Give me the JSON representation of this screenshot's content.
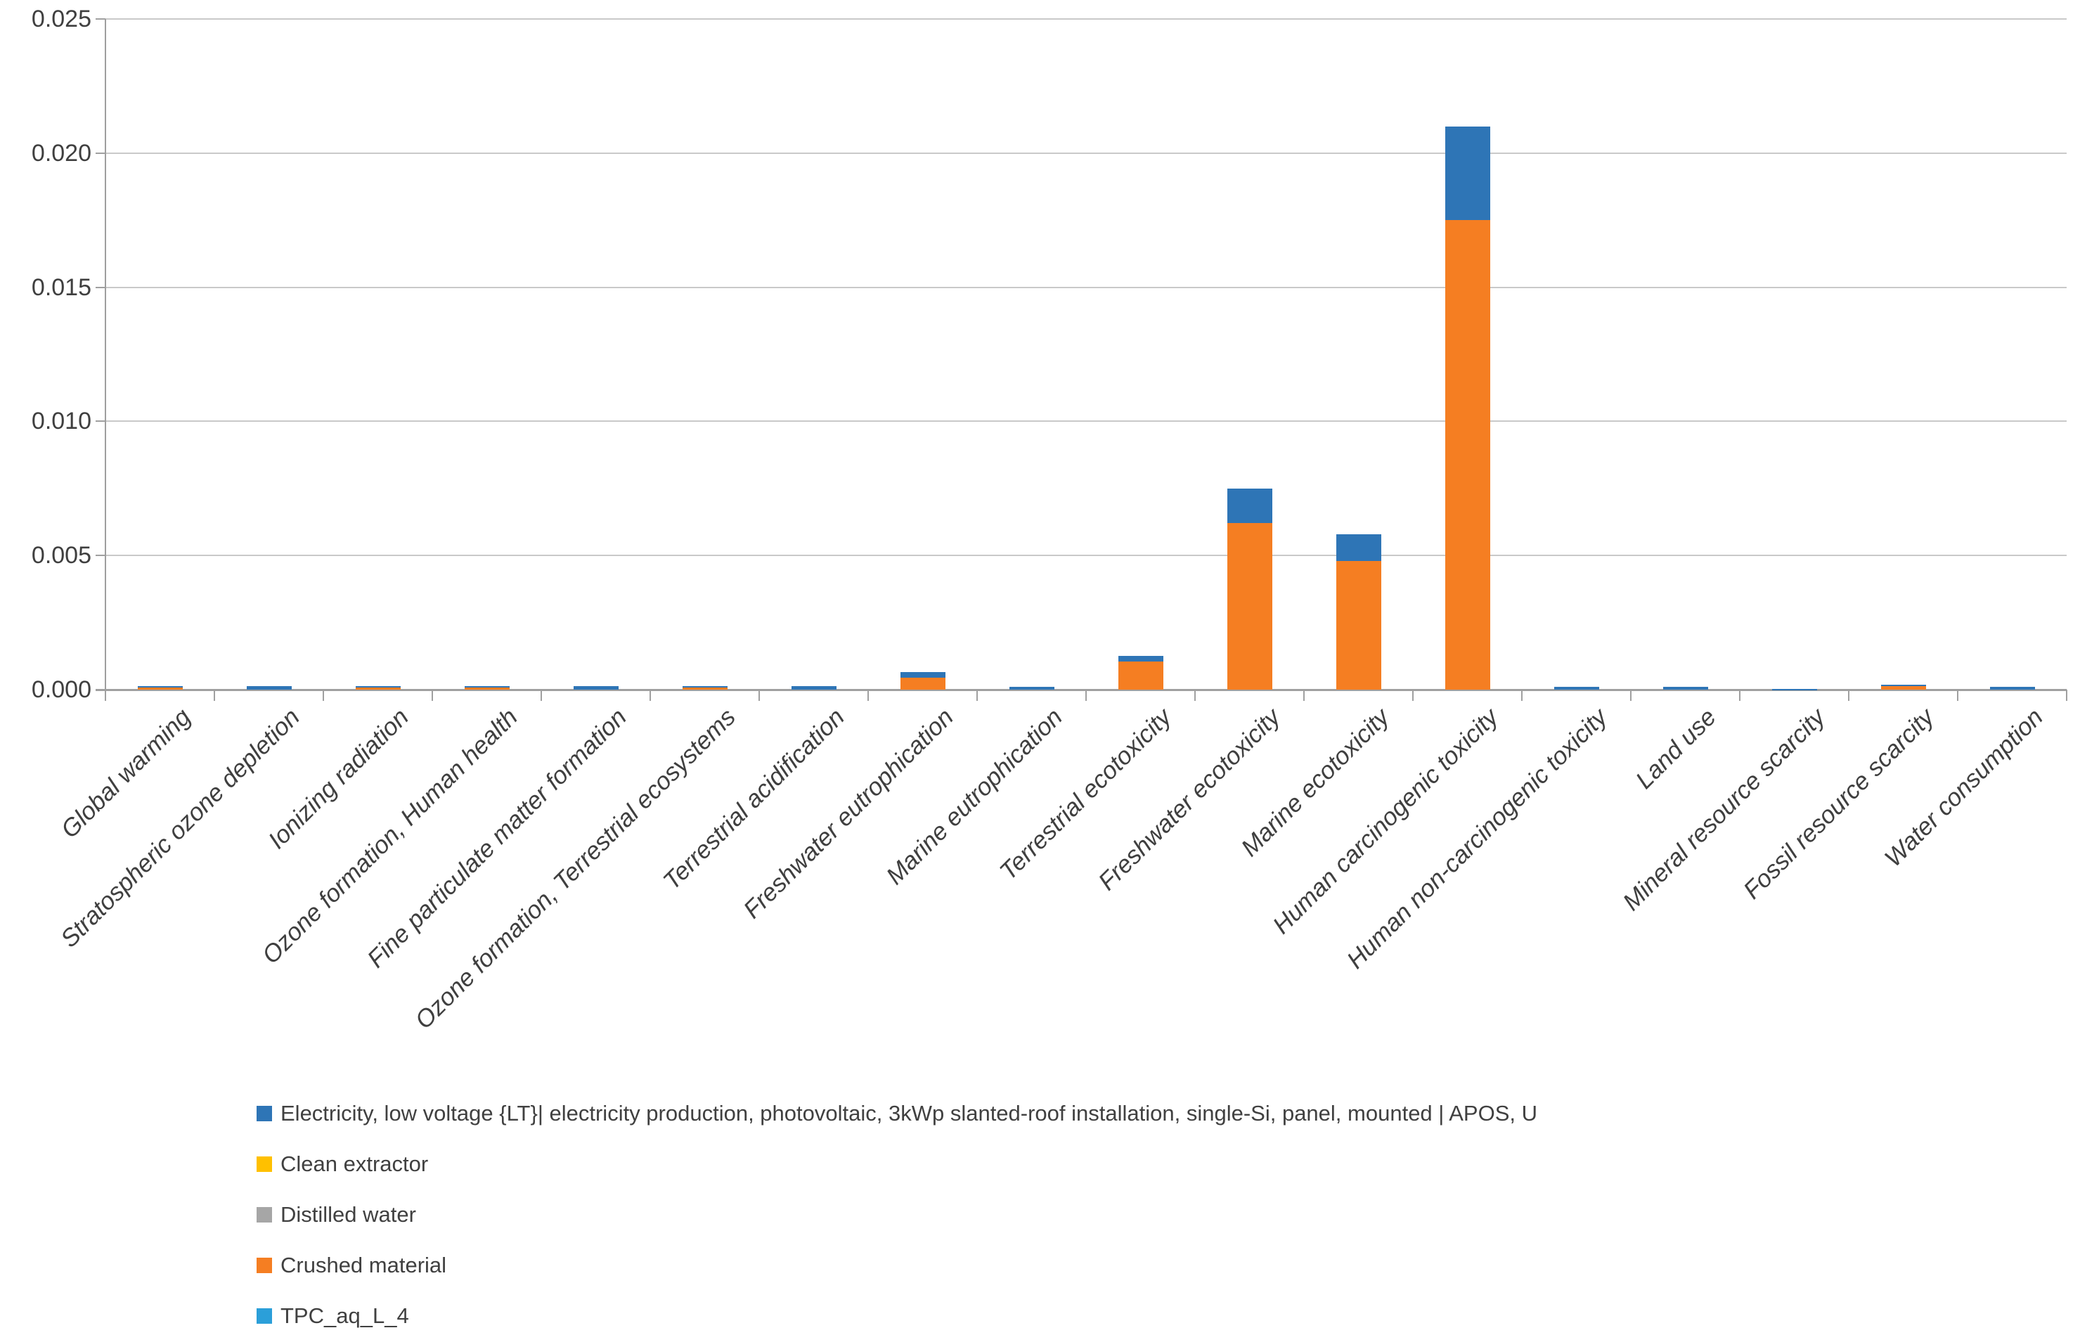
{
  "chart_data": {
    "type": "bar",
    "subtype": "stacked",
    "title": "",
    "xlabel": "",
    "ylabel": "",
    "ylim": [
      0,
      0.025
    ],
    "y_tick_step": 0.005,
    "y_tick_labels": [
      "0.000",
      "0.005",
      "0.010",
      "0.015",
      "0.020",
      "0.025"
    ],
    "grid": "horizontal",
    "legend_position": "bottom-left",
    "categories": [
      "Global warming",
      "Stratospheric ozone depletion",
      "Ionizing radiation",
      "Ozone formation, Human health",
      "Fine particulate matter formation",
      "Ozone formation, Terrestrial ecosystems",
      "Terrestrial acidification",
      "Freshwater eutrophication",
      "Marine eutrophication",
      "Terrestrial ecotoxicity",
      "Freshwater ecotoxicity",
      "Marine ecotoxicity",
      "Human carcinogenic toxicity",
      "Human non-carcinogenic toxicity",
      "Land use",
      "Mineral resource scarcity",
      "Fossil resource scarcity",
      "Water consumption"
    ],
    "series": [
      {
        "name": "Electricity, low voltage {LT}| electricity production, photovoltaic, 3kWp slanted-roof installation, single-Si, panel, mounted | APOS, U",
        "color": "#2E75B6",
        "values": [
          5e-05,
          0.00012,
          5e-05,
          5e-05,
          0.00012,
          5e-05,
          0.00013,
          0.0002,
          0.0001,
          0.0002,
          0.0013,
          0.001,
          0.0035,
          0.0001,
          0.0001,
          2e-05,
          3e-05,
          0.0001
        ]
      },
      {
        "name": "Clean extractor",
        "color": "#FFC000",
        "values": [
          0,
          0,
          0,
          0,
          0,
          0,
          0,
          0,
          0,
          0,
          0,
          0,
          0,
          0,
          0,
          0,
          0,
          0
        ]
      },
      {
        "name": "Distilled water",
        "color": "#A6A6A6",
        "values": [
          0,
          0,
          0,
          0,
          0,
          0,
          0,
          0,
          0,
          0,
          0,
          0,
          0,
          0,
          0,
          0,
          0,
          0
        ]
      },
      {
        "name": "Crushed material",
        "color": "#F57E22",
        "values": [
          8e-05,
          0,
          8e-05,
          8e-05,
          0,
          8e-05,
          0,
          0.00045,
          0,
          0.00105,
          0.0062,
          0.0048,
          0.0175,
          0,
          0,
          0,
          0.00015,
          0
        ]
      },
      {
        "name": "TPC_aq_L_4",
        "color": "#2B9FD9",
        "values": [
          0,
          0,
          0,
          0,
          0,
          0,
          0,
          0,
          0,
          0,
          0,
          0,
          0,
          0,
          0,
          0,
          0,
          0
        ]
      }
    ],
    "stack_order_bottom_to_top": [
      3,
      1,
      2,
      4,
      0
    ],
    "colors": {
      "gridline": "#C9C9C9",
      "axis": "#A0A0A0",
      "text": "#3f3f3f"
    }
  },
  "layout_note": ""
}
